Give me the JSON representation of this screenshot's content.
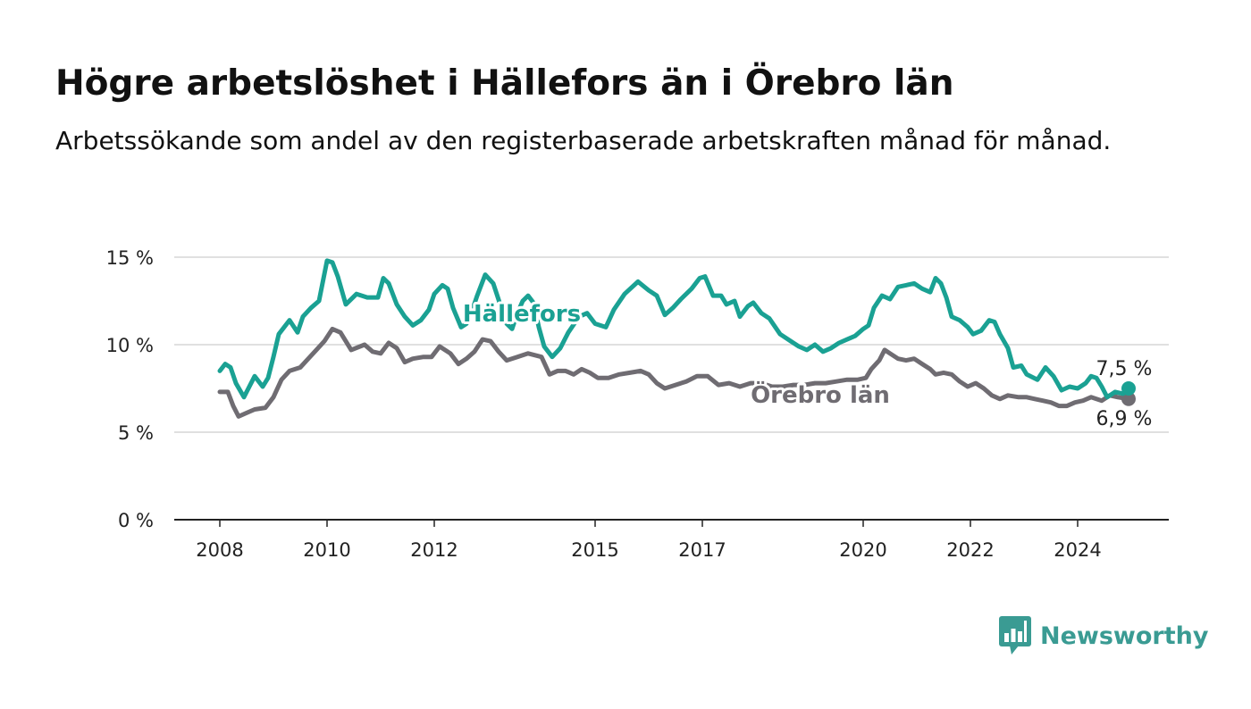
{
  "header": {
    "title": "Högre arbetslöshet i Hällefors än i Örebro län",
    "subtitle": "Arbetssökande som andel av den registerbaserade arbetskraften månad för månad."
  },
  "brand": {
    "name": "Newsworthy",
    "icon": "bar-chart-bubble-icon",
    "color": "#3a9b93"
  },
  "chart_data": {
    "type": "line",
    "title": "Högre arbetslöshet i Hällefors än i Örebro län",
    "subtitle": "Arbetssökande som andel av den registerbaserade arbetskraften månad för månad.",
    "xlabel": "",
    "ylabel": "",
    "xlim": [
      2007.95,
      2025.0
    ],
    "ylim": [
      0,
      15
    ],
    "x_ticks": [
      2008,
      2010,
      2012,
      2015,
      2017,
      2020,
      2022,
      2024
    ],
    "y_ticks": [
      {
        "value": 0,
        "label": "0 %"
      },
      {
        "value": 5,
        "label": "5 %"
      },
      {
        "value": 10,
        "label": "10 %"
      },
      {
        "value": 15,
        "label": "15 %"
      }
    ],
    "grid": true,
    "series": [
      {
        "name": "Hällefors",
        "color": "#1aa193",
        "label_at": [
          2012.5,
          11.8
        ],
        "end_label": "7,5 %",
        "points": [
          [
            2008.0,
            8.5
          ],
          [
            2008.1,
            8.9
          ],
          [
            2008.2,
            8.7
          ],
          [
            2008.3,
            7.8
          ],
          [
            2008.45,
            7.0
          ],
          [
            2008.55,
            7.6
          ],
          [
            2008.65,
            8.2
          ],
          [
            2008.8,
            7.6
          ],
          [
            2008.9,
            8.1
          ],
          [
            2009.0,
            9.3
          ],
          [
            2009.1,
            10.6
          ],
          [
            2009.3,
            11.4
          ],
          [
            2009.45,
            10.7
          ],
          [
            2009.55,
            11.6
          ],
          [
            2009.7,
            12.1
          ],
          [
            2009.85,
            12.5
          ],
          [
            2010.0,
            14.8
          ],
          [
            2010.1,
            14.7
          ],
          [
            2010.2,
            13.9
          ],
          [
            2010.35,
            12.3
          ],
          [
            2010.55,
            12.9
          ],
          [
            2010.75,
            12.7
          ],
          [
            2010.95,
            12.7
          ],
          [
            2011.05,
            13.8
          ],
          [
            2011.15,
            13.5
          ],
          [
            2011.3,
            12.3
          ],
          [
            2011.45,
            11.6
          ],
          [
            2011.6,
            11.1
          ],
          [
            2011.75,
            11.4
          ],
          [
            2011.9,
            12.0
          ],
          [
            2012.0,
            12.9
          ],
          [
            2012.15,
            13.4
          ],
          [
            2012.25,
            13.2
          ],
          [
            2012.35,
            12.1
          ],
          [
            2012.5,
            11.0
          ],
          [
            2012.6,
            11.2
          ],
          [
            2012.7,
            11.9
          ],
          [
            2012.8,
            12.8
          ],
          [
            2012.95,
            14.0
          ],
          [
            2013.1,
            13.5
          ],
          [
            2013.25,
            12.1
          ],
          [
            2013.35,
            11.2
          ],
          [
            2013.45,
            10.9
          ],
          [
            2013.55,
            11.8
          ],
          [
            2013.65,
            12.5
          ],
          [
            2013.75,
            12.8
          ],
          [
            2013.85,
            12.4
          ],
          [
            2013.95,
            11.0
          ],
          [
            2014.05,
            9.9
          ],
          [
            2014.2,
            9.3
          ],
          [
            2014.35,
            9.8
          ],
          [
            2014.5,
            10.7
          ],
          [
            2014.7,
            11.6
          ],
          [
            2014.85,
            11.8
          ],
          [
            2015.0,
            11.2
          ],
          [
            2015.2,
            11.0
          ],
          [
            2015.35,
            12.0
          ],
          [
            2015.55,
            12.9
          ],
          [
            2015.8,
            13.6
          ],
          [
            2016.0,
            13.1
          ],
          [
            2016.15,
            12.8
          ],
          [
            2016.3,
            11.7
          ],
          [
            2016.45,
            12.1
          ],
          [
            2016.6,
            12.6
          ],
          [
            2016.8,
            13.2
          ],
          [
            2016.95,
            13.8
          ],
          [
            2017.05,
            13.9
          ],
          [
            2017.2,
            12.8
          ],
          [
            2017.35,
            12.8
          ],
          [
            2017.45,
            12.3
          ],
          [
            2017.6,
            12.5
          ],
          [
            2017.7,
            11.6
          ],
          [
            2017.85,
            12.2
          ],
          [
            2017.95,
            12.4
          ],
          [
            2018.1,
            11.8
          ],
          [
            2018.25,
            11.5
          ],
          [
            2018.45,
            10.6
          ],
          [
            2018.65,
            10.2
          ],
          [
            2018.8,
            9.9
          ],
          [
            2018.95,
            9.7
          ],
          [
            2019.1,
            10.0
          ],
          [
            2019.25,
            9.6
          ],
          [
            2019.4,
            9.8
          ],
          [
            2019.55,
            10.1
          ],
          [
            2019.7,
            10.3
          ],
          [
            2019.85,
            10.5
          ],
          [
            2020.0,
            10.9
          ],
          [
            2020.1,
            11.1
          ],
          [
            2020.2,
            12.1
          ],
          [
            2020.35,
            12.8
          ],
          [
            2020.5,
            12.6
          ],
          [
            2020.65,
            13.3
          ],
          [
            2020.8,
            13.4
          ],
          [
            2020.95,
            13.5
          ],
          [
            2021.1,
            13.2
          ],
          [
            2021.25,
            13.0
          ],
          [
            2021.35,
            13.8
          ],
          [
            2021.45,
            13.5
          ],
          [
            2021.55,
            12.7
          ],
          [
            2021.65,
            11.6
          ],
          [
            2021.8,
            11.4
          ],
          [
            2021.95,
            11.0
          ],
          [
            2022.05,
            10.6
          ],
          [
            2022.2,
            10.8
          ],
          [
            2022.35,
            11.4
          ],
          [
            2022.45,
            11.3
          ],
          [
            2022.55,
            10.6
          ],
          [
            2022.7,
            9.8
          ],
          [
            2022.8,
            8.7
          ],
          [
            2022.95,
            8.8
          ],
          [
            2023.05,
            8.3
          ],
          [
            2023.25,
            8.0
          ],
          [
            2023.4,
            8.7
          ],
          [
            2023.55,
            8.2
          ],
          [
            2023.7,
            7.4
          ],
          [
            2023.85,
            7.6
          ],
          [
            2024.0,
            7.5
          ],
          [
            2024.15,
            7.8
          ],
          [
            2024.25,
            8.2
          ],
          [
            2024.35,
            8.1
          ],
          [
            2024.45,
            7.6
          ],
          [
            2024.55,
            7.0
          ],
          [
            2024.7,
            7.3
          ],
          [
            2024.85,
            7.2
          ],
          [
            2024.95,
            7.5
          ]
        ]
      },
      {
        "name": "Örebro län",
        "color": "#6f6c72",
        "label_at": [
          2018.8,
          7.2
        ],
        "end_label": "6,9 %",
        "points": [
          [
            2008.0,
            7.3
          ],
          [
            2008.15,
            7.3
          ],
          [
            2008.25,
            6.5
          ],
          [
            2008.35,
            5.9
          ],
          [
            2008.5,
            6.1
          ],
          [
            2008.65,
            6.3
          ],
          [
            2008.85,
            6.4
          ],
          [
            2009.0,
            7.0
          ],
          [
            2009.15,
            8.0
          ],
          [
            2009.3,
            8.5
          ],
          [
            2009.5,
            8.7
          ],
          [
            2009.65,
            9.2
          ],
          [
            2009.8,
            9.7
          ],
          [
            2009.95,
            10.2
          ],
          [
            2010.1,
            10.9
          ],
          [
            2010.25,
            10.7
          ],
          [
            2010.45,
            9.7
          ],
          [
            2010.7,
            10.0
          ],
          [
            2010.85,
            9.6
          ],
          [
            2011.0,
            9.5
          ],
          [
            2011.15,
            10.1
          ],
          [
            2011.3,
            9.8
          ],
          [
            2011.45,
            9.0
          ],
          [
            2011.6,
            9.2
          ],
          [
            2011.8,
            9.3
          ],
          [
            2011.95,
            9.3
          ],
          [
            2012.1,
            9.9
          ],
          [
            2012.3,
            9.5
          ],
          [
            2012.45,
            8.9
          ],
          [
            2012.6,
            9.2
          ],
          [
            2012.75,
            9.6
          ],
          [
            2012.9,
            10.3
          ],
          [
            2013.05,
            10.2
          ],
          [
            2013.2,
            9.6
          ],
          [
            2013.35,
            9.1
          ],
          [
            2013.55,
            9.3
          ],
          [
            2013.75,
            9.5
          ],
          [
            2014.0,
            9.3
          ],
          [
            2014.15,
            8.3
          ],
          [
            2014.3,
            8.5
          ],
          [
            2014.45,
            8.5
          ],
          [
            2014.6,
            8.3
          ],
          [
            2014.75,
            8.6
          ],
          [
            2014.9,
            8.4
          ],
          [
            2015.05,
            8.1
          ],
          [
            2015.25,
            8.1
          ],
          [
            2015.45,
            8.3
          ],
          [
            2015.65,
            8.4
          ],
          [
            2015.85,
            8.5
          ],
          [
            2016.0,
            8.3
          ],
          [
            2016.15,
            7.8
          ],
          [
            2016.3,
            7.5
          ],
          [
            2016.5,
            7.7
          ],
          [
            2016.7,
            7.9
          ],
          [
            2016.9,
            8.2
          ],
          [
            2017.1,
            8.2
          ],
          [
            2017.3,
            7.7
          ],
          [
            2017.5,
            7.8
          ],
          [
            2017.7,
            7.6
          ],
          [
            2017.9,
            7.8
          ],
          [
            2018.1,
            7.8
          ],
          [
            2018.3,
            7.6
          ],
          [
            2018.5,
            7.6
          ],
          [
            2018.7,
            7.7
          ],
          [
            2018.9,
            7.7
          ],
          [
            2019.1,
            7.8
          ],
          [
            2019.3,
            7.8
          ],
          [
            2019.5,
            7.9
          ],
          [
            2019.7,
            8.0
          ],
          [
            2019.9,
            8.0
          ],
          [
            2020.05,
            8.1
          ],
          [
            2020.15,
            8.6
          ],
          [
            2020.3,
            9.1
          ],
          [
            2020.4,
            9.7
          ],
          [
            2020.5,
            9.5
          ],
          [
            2020.65,
            9.2
          ],
          [
            2020.8,
            9.1
          ],
          [
            2020.95,
            9.2
          ],
          [
            2021.1,
            8.9
          ],
          [
            2021.25,
            8.6
          ],
          [
            2021.35,
            8.3
          ],
          [
            2021.5,
            8.4
          ],
          [
            2021.65,
            8.3
          ],
          [
            2021.8,
            7.9
          ],
          [
            2021.95,
            7.6
          ],
          [
            2022.1,
            7.8
          ],
          [
            2022.25,
            7.5
          ],
          [
            2022.4,
            7.1
          ],
          [
            2022.55,
            6.9
          ],
          [
            2022.7,
            7.1
          ],
          [
            2022.9,
            7.0
          ],
          [
            2023.05,
            7.0
          ],
          [
            2023.2,
            6.9
          ],
          [
            2023.35,
            6.8
          ],
          [
            2023.5,
            6.7
          ],
          [
            2023.65,
            6.5
          ],
          [
            2023.8,
            6.5
          ],
          [
            2023.95,
            6.7
          ],
          [
            2024.1,
            6.8
          ],
          [
            2024.25,
            7.0
          ],
          [
            2024.45,
            6.8
          ],
          [
            2024.6,
            7.1
          ],
          [
            2024.75,
            7.0
          ],
          [
            2024.95,
            6.9
          ]
        ]
      }
    ]
  }
}
